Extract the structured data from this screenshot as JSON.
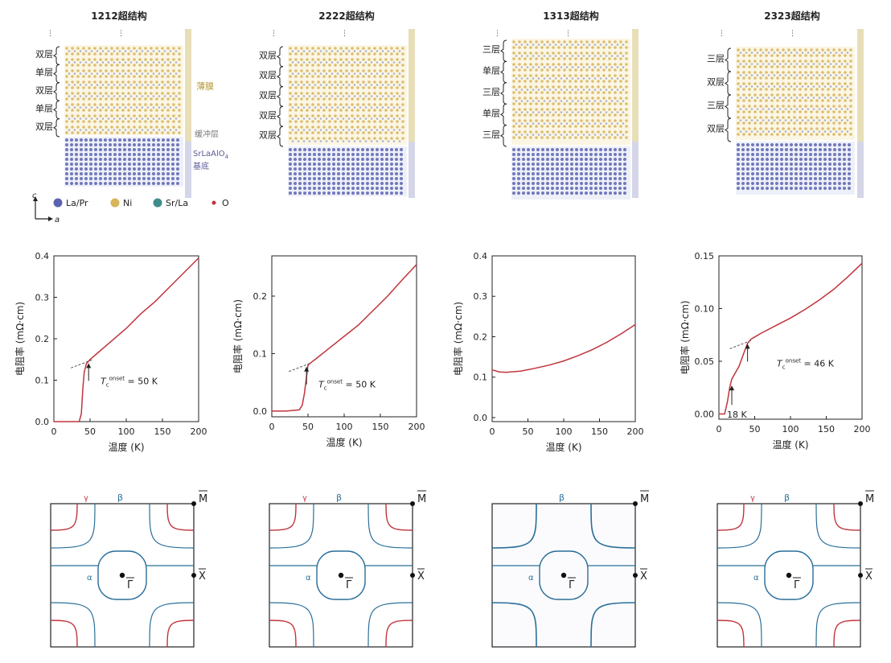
{
  "colors": {
    "la_pr": "#5b63b0",
    "ni": "#d8b45a",
    "sr_la": "#3f8d8a",
    "o": "#c0343c",
    "curve": "#c0343c",
    "fs_red": "#c0343c",
    "fs_blue": "#2a6f9a",
    "film_bar": "#e8dfb8",
    "substrate_bar": "#d4d6e8"
  },
  "legend": {
    "axis_c": "c",
    "axis_a": "a",
    "items": [
      {
        "label": "La/Pr",
        "color": "#5b63b0"
      },
      {
        "label": "Ni",
        "color": "#d8b45a"
      },
      {
        "label": "Sr/La",
        "color": "#3f8d8a"
      },
      {
        "label": "O",
        "color": "#c0343c"
      }
    ]
  },
  "structures": [
    {
      "title": "1212超结构",
      "layers": [
        "双层",
        "单层",
        "双层",
        "单层",
        "双层"
      ],
      "film_label": "薄膜",
      "buffer_label": "缓冲层",
      "substrate_label_1": "SrLaAlO",
      "substrate_label_sub": "4",
      "substrate_label_2": "基底"
    },
    {
      "title": "2222超结构",
      "layers": [
        "双层",
        "双层",
        "双层",
        "双层",
        "双层"
      ]
    },
    {
      "title": "1313超结构",
      "layers": [
        "三层",
        "单层",
        "三层",
        "单层",
        "三层"
      ]
    },
    {
      "title": "2323超结构",
      "layers": [
        "三层",
        "双层",
        "三层",
        "双层"
      ]
    }
  ],
  "resistivity_panels": [
    {
      "ylabel": "电阻率 (mΩ·cm)",
      "xlabel": "温度 (K)",
      "annotation_prefix": "T",
      "annotation_sub": "c",
      "annotation_sup": "onset",
      "annotation_value": " = 50 K"
    },
    {
      "ylabel": "电阻率 (mΩ·cm)",
      "xlabel": "温度 (K)",
      "annotation_prefix": "T",
      "annotation_sub": "c",
      "annotation_sup": "onset",
      "annotation_value": " = 50 K"
    },
    {
      "ylabel": "电阻率 (mΩ·cm)",
      "xlabel": "温度 (K)"
    },
    {
      "ylabel": "电阻率 (mΩ·cm)",
      "xlabel": "温度 (K)",
      "annotation_prefix": "T",
      "annotation_sub": "c",
      "annotation_sup": "onset",
      "annotation_value": " = 46 K",
      "annotation2": "18 K"
    }
  ],
  "chart_data": [
    {
      "type": "line",
      "xlim": [
        0,
        200
      ],
      "ylim": [
        0,
        0.4
      ],
      "xticks": [
        0,
        50,
        100,
        150,
        200
      ],
      "yticks": [
        0.0,
        0.1,
        0.2,
        0.3,
        0.4
      ],
      "ytick_labels": [
        "0.0",
        "0.1",
        "0.2",
        "0.3",
        "0.4"
      ],
      "x": [
        0,
        20,
        35,
        38,
        40,
        42,
        45,
        50,
        60,
        80,
        100,
        120,
        140,
        160,
        180,
        200
      ],
      "y": [
        0.0,
        0.0,
        0.0,
        0.02,
        0.08,
        0.12,
        0.14,
        0.15,
        0.165,
        0.195,
        0.225,
        0.26,
        0.29,
        0.325,
        0.36,
        0.395
      ]
    },
    {
      "type": "line",
      "xlim": [
        0,
        200
      ],
      "ylim": [
        -0.01,
        0.27
      ],
      "xticks": [
        0,
        50,
        100,
        150,
        200
      ],
      "yticks": [
        0.0,
        0.1,
        0.2
      ],
      "ytick_labels": [
        "0.0",
        "0.1",
        "0.2"
      ],
      "x": [
        0,
        20,
        38,
        42,
        45,
        48,
        50,
        55,
        60,
        80,
        100,
        120,
        140,
        160,
        180,
        200
      ],
      "y": [
        0.0,
        0.0,
        0.002,
        0.01,
        0.03,
        0.06,
        0.08,
        0.085,
        0.09,
        0.11,
        0.13,
        0.15,
        0.175,
        0.2,
        0.228,
        0.255
      ]
    },
    {
      "type": "line",
      "xlim": [
        0,
        200
      ],
      "ylim": [
        -0.01,
        0.4
      ],
      "xticks": [
        0,
        50,
        100,
        150,
        200
      ],
      "yticks": [
        0.0,
        0.1,
        0.2,
        0.3,
        0.4
      ],
      "ytick_labels": [
        "0.0",
        "0.1",
        "0.2",
        "0.3",
        "0.4"
      ],
      "x": [
        0,
        10,
        20,
        40,
        60,
        80,
        100,
        120,
        140,
        160,
        180,
        200
      ],
      "y": [
        0.118,
        0.113,
        0.112,
        0.115,
        0.122,
        0.13,
        0.14,
        0.153,
        0.168,
        0.186,
        0.207,
        0.23
      ]
    },
    {
      "type": "line",
      "xlim": [
        0,
        200
      ],
      "ylim": [
        -0.005,
        0.15
      ],
      "xticks": [
        0,
        50,
        100,
        150,
        200
      ],
      "yticks": [
        0.0,
        0.05,
        0.1,
        0.15
      ],
      "ytick_labels": [
        "0.00",
        "0.05",
        "0.10",
        "0.15"
      ],
      "x": [
        0,
        8,
        12,
        15,
        18,
        22,
        28,
        35,
        40,
        45,
        50,
        60,
        80,
        100,
        120,
        140,
        160,
        180,
        200
      ],
      "y": [
        0.0,
        0.0,
        0.012,
        0.025,
        0.033,
        0.038,
        0.045,
        0.058,
        0.067,
        0.071,
        0.073,
        0.077,
        0.084,
        0.091,
        0.099,
        0.108,
        0.118,
        0.13,
        0.143
      ]
    }
  ],
  "fermi_panels": [
    {
      "labels": {
        "gamma": "γ",
        "beta": "β",
        "alpha": "α",
        "M": "M",
        "X": "X",
        "G": "Γ"
      },
      "red_pockets": true
    },
    {
      "labels": {
        "gamma": "γ",
        "beta": "β",
        "alpha": "α",
        "M": "M",
        "X": "X",
        "G": "Γ"
      },
      "red_pockets": true
    },
    {
      "labels": {
        "beta": "β",
        "alpha": "α",
        "M": "M",
        "X": "X",
        "G": "Γ"
      },
      "red_pockets": false
    },
    {
      "labels": {
        "gamma": "γ",
        "beta": "β",
        "alpha": "α",
        "M": "M",
        "X": "X",
        "G": "Γ"
      },
      "red_pockets": true
    }
  ]
}
